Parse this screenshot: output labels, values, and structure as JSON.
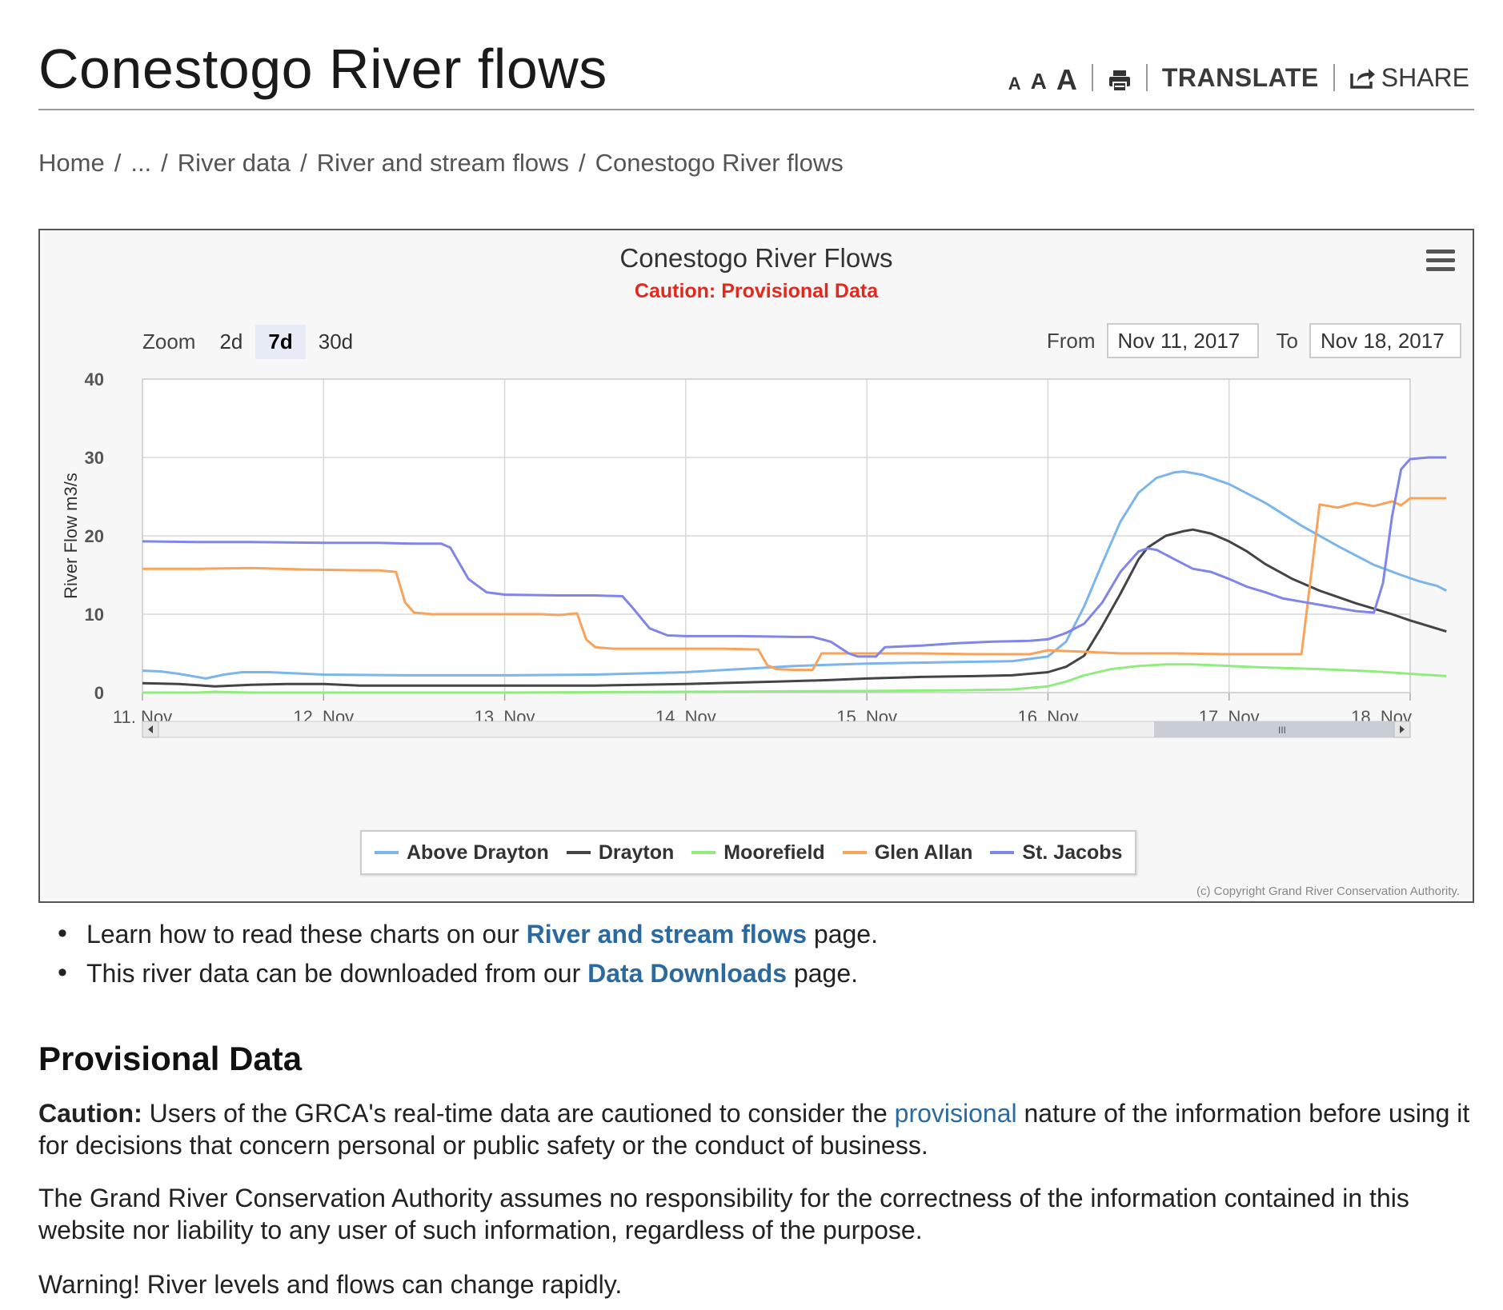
{
  "page": {
    "title": "Conestogo River flows"
  },
  "toolbar": {
    "font_small": "A",
    "font_medium": "A",
    "font_large": "A",
    "print_icon": "printer-icon",
    "translate_label": "TRANSLATE",
    "share_icon": "share-arrow-icon",
    "share_label": "SHARE"
  },
  "breadcrumb": {
    "items": [
      "Home",
      "...",
      "River data",
      "River and stream flows",
      "Conestogo River flows"
    ],
    "separator": "/"
  },
  "chart_panel": {
    "menu_icon": "hamburger-menu-icon",
    "zoom_label": "Zoom",
    "zoom_options": [
      "2d",
      "7d",
      "30d"
    ],
    "zoom_selected": "7d",
    "from_label": "From",
    "from_value": "Nov 11, 2017",
    "to_label": "To",
    "to_value": "Nov 18, 2017",
    "credit": "(c) Copyright Grand River Conservation Authority.",
    "scrollbar_grip": "III"
  },
  "chart_data": {
    "type": "line",
    "title": "Conestogo River Flows",
    "subtitle": "Caution: Provisional Data",
    "subtitle_color": "#e3281e",
    "ylabel": "River Flow m3/s",
    "xlabel": "",
    "ylim": [
      0,
      40
    ],
    "yticks": [
      0,
      10,
      20,
      30,
      40
    ],
    "xlim": [
      11,
      18
    ],
    "xticks": [
      11,
      12,
      13,
      14,
      15,
      16,
      17,
      18
    ],
    "xtick_labels": [
      "11. Nov",
      "12. Nov",
      "13. Nov",
      "14. Nov",
      "15. Nov",
      "16. Nov",
      "17. Nov",
      "18. Nov"
    ],
    "grid": true,
    "legend_position": "bottom-center",
    "series": [
      {
        "name": "Above Drayton",
        "color": "#7cb5ec",
        "points": [
          [
            11,
            2.8
          ],
          [
            11.1,
            2.7
          ],
          [
            11.2,
            2.4
          ],
          [
            11.3,
            2.0
          ],
          [
            11.35,
            1.8
          ],
          [
            11.45,
            2.3
          ],
          [
            11.55,
            2.6
          ],
          [
            11.7,
            2.6
          ],
          [
            11.8,
            2.5
          ],
          [
            12,
            2.3
          ],
          [
            12.5,
            2.2
          ],
          [
            13,
            2.2
          ],
          [
            13.5,
            2.3
          ],
          [
            14,
            2.6
          ],
          [
            14.3,
            3.0
          ],
          [
            14.6,
            3.4
          ],
          [
            15,
            3.7
          ],
          [
            15.5,
            3.9
          ],
          [
            15.8,
            4.0
          ],
          [
            16.0,
            4.6
          ],
          [
            16.1,
            6.5
          ],
          [
            16.2,
            11
          ],
          [
            16.3,
            16.5
          ],
          [
            16.4,
            21.8
          ],
          [
            16.5,
            25.5
          ],
          [
            16.6,
            27.4
          ],
          [
            16.7,
            28.1
          ],
          [
            16.75,
            28.2
          ],
          [
            16.85,
            27.8
          ],
          [
            17.0,
            26.6
          ],
          [
            17.2,
            24.2
          ],
          [
            17.4,
            21.3
          ],
          [
            17.6,
            18.7
          ],
          [
            17.8,
            16.3
          ],
          [
            17.95,
            15.0
          ],
          [
            18.05,
            14.2
          ],
          [
            18.15,
            13.6
          ],
          [
            18.2,
            13.0
          ]
        ]
      },
      {
        "name": "Drayton",
        "color": "#434348",
        "points": [
          [
            11,
            1.2
          ],
          [
            11.2,
            1.1
          ],
          [
            11.4,
            0.8
          ],
          [
            11.6,
            1.0
          ],
          [
            11.8,
            1.1
          ],
          [
            12,
            1.1
          ],
          [
            12.2,
            0.9
          ],
          [
            12.5,
            0.9
          ],
          [
            13,
            0.9
          ],
          [
            13.5,
            0.9
          ],
          [
            14,
            1.1
          ],
          [
            14.5,
            1.4
          ],
          [
            14.8,
            1.6
          ],
          [
            15,
            1.8
          ],
          [
            15.3,
            2.0
          ],
          [
            15.6,
            2.1
          ],
          [
            15.8,
            2.2
          ],
          [
            16.0,
            2.6
          ],
          [
            16.1,
            3.3
          ],
          [
            16.2,
            4.7
          ],
          [
            16.3,
            8.5
          ],
          [
            16.4,
            12.6
          ],
          [
            16.5,
            17.0
          ],
          [
            16.55,
            18.5
          ],
          [
            16.65,
            20.0
          ],
          [
            16.75,
            20.6
          ],
          [
            16.8,
            20.8
          ],
          [
            16.9,
            20.3
          ],
          [
            17.0,
            19.3
          ],
          [
            17.1,
            18.0
          ],
          [
            17.2,
            16.4
          ],
          [
            17.35,
            14.5
          ],
          [
            17.5,
            13.0
          ],
          [
            17.6,
            12.2
          ],
          [
            17.7,
            11.4
          ],
          [
            17.8,
            10.7
          ],
          [
            17.9,
            10.0
          ],
          [
            18.0,
            9.2
          ],
          [
            18.1,
            8.5
          ],
          [
            18.2,
            7.8
          ]
        ]
      },
      {
        "name": "Moorefield",
        "color": "#90ed7d",
        "points": [
          [
            11,
            0.0
          ],
          [
            11.3,
            0.0
          ],
          [
            11.4,
            0.1
          ],
          [
            11.6,
            0.0
          ],
          [
            12,
            0.0
          ],
          [
            13,
            0.0
          ],
          [
            14,
            0.1
          ],
          [
            15,
            0.2
          ],
          [
            15.5,
            0.3
          ],
          [
            15.8,
            0.4
          ],
          [
            16.0,
            0.8
          ],
          [
            16.1,
            1.4
          ],
          [
            16.2,
            2.2
          ],
          [
            16.35,
            3.0
          ],
          [
            16.5,
            3.4
          ],
          [
            16.65,
            3.6
          ],
          [
            16.8,
            3.6
          ],
          [
            17.0,
            3.4
          ],
          [
            17.2,
            3.2
          ],
          [
            17.5,
            3.0
          ],
          [
            17.8,
            2.7
          ],
          [
            18.0,
            2.4
          ],
          [
            18.2,
            2.1
          ]
        ]
      },
      {
        "name": "Glen Allan",
        "color": "#f7a35c",
        "points": [
          [
            11,
            15.8
          ],
          [
            11.3,
            15.8
          ],
          [
            11.6,
            15.9
          ],
          [
            11.9,
            15.7
          ],
          [
            12.2,
            15.6
          ],
          [
            12.3,
            15.6
          ],
          [
            12.35,
            15.5
          ],
          [
            12.4,
            15.4
          ],
          [
            12.45,
            11.5
          ],
          [
            12.5,
            10.2
          ],
          [
            12.6,
            10.0
          ],
          [
            13,
            10.0
          ],
          [
            13.2,
            10.0
          ],
          [
            13.3,
            9.9
          ],
          [
            13.4,
            10.1
          ],
          [
            13.45,
            6.8
          ],
          [
            13.5,
            5.8
          ],
          [
            13.6,
            5.6
          ],
          [
            14,
            5.6
          ],
          [
            14.2,
            5.6
          ],
          [
            14.4,
            5.5
          ],
          [
            14.45,
            3.5
          ],
          [
            14.5,
            3.0
          ],
          [
            14.6,
            2.9
          ],
          [
            14.7,
            2.9
          ],
          [
            14.75,
            5.0
          ],
          [
            15,
            5.0
          ],
          [
            15.3,
            5.0
          ],
          [
            15.6,
            4.9
          ],
          [
            15.9,
            4.9
          ],
          [
            16,
            5.4
          ],
          [
            16.2,
            5.2
          ],
          [
            16.4,
            5.0
          ],
          [
            16.7,
            5.0
          ],
          [
            17,
            4.9
          ],
          [
            17.3,
            4.9
          ],
          [
            17.4,
            4.9
          ],
          [
            17.5,
            24.0
          ],
          [
            17.6,
            23.6
          ],
          [
            17.7,
            24.2
          ],
          [
            17.8,
            23.8
          ],
          [
            17.9,
            24.4
          ],
          [
            17.95,
            23.9
          ],
          [
            18.0,
            24.8
          ],
          [
            18.2,
            24.8
          ]
        ]
      },
      {
        "name": "St. Jacobs",
        "color": "#8085e9",
        "points": [
          [
            11,
            19.3
          ],
          [
            11.3,
            19.2
          ],
          [
            11.6,
            19.2
          ],
          [
            12,
            19.1
          ],
          [
            12.3,
            19.1
          ],
          [
            12.5,
            19.0
          ],
          [
            12.65,
            19.0
          ],
          [
            12.7,
            18.5
          ],
          [
            12.8,
            14.5
          ],
          [
            12.9,
            12.8
          ],
          [
            13,
            12.5
          ],
          [
            13.3,
            12.4
          ],
          [
            13.5,
            12.4
          ],
          [
            13.65,
            12.3
          ],
          [
            13.7,
            11.0
          ],
          [
            13.8,
            8.2
          ],
          [
            13.9,
            7.3
          ],
          [
            14,
            7.2
          ],
          [
            14.3,
            7.2
          ],
          [
            14.6,
            7.1
          ],
          [
            14.7,
            7.1
          ],
          [
            14.8,
            6.5
          ],
          [
            14.9,
            5.0
          ],
          [
            14.95,
            4.6
          ],
          [
            15.05,
            4.6
          ],
          [
            15.1,
            5.8
          ],
          [
            15.3,
            6.0
          ],
          [
            15.5,
            6.3
          ],
          [
            15.7,
            6.5
          ],
          [
            15.9,
            6.6
          ],
          [
            16.0,
            6.8
          ],
          [
            16.1,
            7.6
          ],
          [
            16.2,
            8.8
          ],
          [
            16.3,
            11.5
          ],
          [
            16.4,
            15.4
          ],
          [
            16.5,
            18.0
          ],
          [
            16.55,
            18.4
          ],
          [
            16.6,
            18.2
          ],
          [
            16.7,
            17.0
          ],
          [
            16.8,
            15.8
          ],
          [
            16.9,
            15.4
          ],
          [
            17.0,
            14.5
          ],
          [
            17.1,
            13.5
          ],
          [
            17.2,
            12.8
          ],
          [
            17.3,
            12.0
          ],
          [
            17.4,
            11.6
          ],
          [
            17.5,
            11.2
          ],
          [
            17.6,
            10.8
          ],
          [
            17.7,
            10.4
          ],
          [
            17.8,
            10.2
          ],
          [
            17.85,
            14.0
          ],
          [
            17.9,
            22.5
          ],
          [
            17.95,
            28.5
          ],
          [
            18.0,
            29.8
          ],
          [
            18.1,
            30.0
          ],
          [
            18.2,
            30.0
          ]
        ]
      }
    ]
  },
  "content": {
    "bullets": [
      {
        "before": "Learn how to read these charts on our ",
        "link": "River and stream flows",
        "after": " page."
      },
      {
        "before": "This river data can be downloaded from our ",
        "link": "Data Downloads",
        "after": " page."
      }
    ],
    "section_title": "Provisional Data",
    "caution_label": "Caution:",
    "caution_before": " Users of the GRCA's real-time data are cautioned to consider the ",
    "caution_link": "provisional",
    "caution_after": " nature of the information before using it for decisions that concern personal or public safety or the conduct of business.",
    "disclaimer": "The Grand River Conservation Authority assumes no responsibility for the correctness of the information contained in this website nor liability to any user of such information, regardless of the purpose.",
    "warning": "Warning! River levels and flows can change rapidly."
  }
}
